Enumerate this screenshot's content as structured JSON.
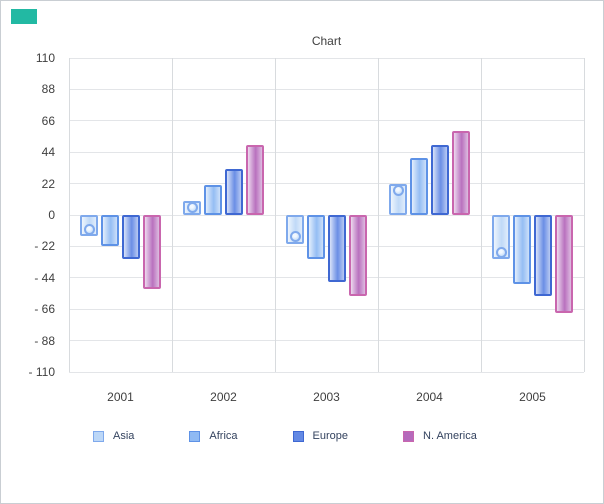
{
  "page": {
    "corner_accent_color": "#22B9A3"
  },
  "chart_data": {
    "type": "bar",
    "title": "Chart",
    "categories": [
      "2001",
      "2002",
      "2003",
      "2004",
      "2005"
    ],
    "series": [
      {
        "name": "Asia",
        "fill": "#BCD7F7",
        "border": "#7FA9EC",
        "marker": true,
        "values": [
          -15,
          10,
          -20,
          22,
          -31
        ]
      },
      {
        "name": "Africa",
        "fill": "#8FBAF3",
        "border": "#5E92E6",
        "marker": false,
        "values": [
          -22,
          21,
          -31,
          40,
          -48
        ]
      },
      {
        "name": "Europe",
        "fill": "#6389E4",
        "border": "#3F68D2",
        "marker": false,
        "values": [
          -31,
          32,
          -47,
          49,
          -57
        ]
      },
      {
        "name": "N. America",
        "fill": "#B56ABB",
        "border": "#C966AE",
        "marker": false,
        "values": [
          -52,
          49,
          -57,
          59,
          -69
        ]
      }
    ],
    "y_axis": {
      "tick_values": [
        110,
        88,
        66,
        44,
        22,
        0,
        -22,
        -44,
        -66,
        -88,
        -110
      ],
      "tick_labels": [
        "110",
        "88",
        "66",
        "44",
        "22",
        "0",
        "- 22",
        "- 44",
        "- 66",
        "- 88",
        "- 110"
      ],
      "min": -110,
      "max": 110
    },
    "legend_position": "bottom",
    "grid": true
  }
}
